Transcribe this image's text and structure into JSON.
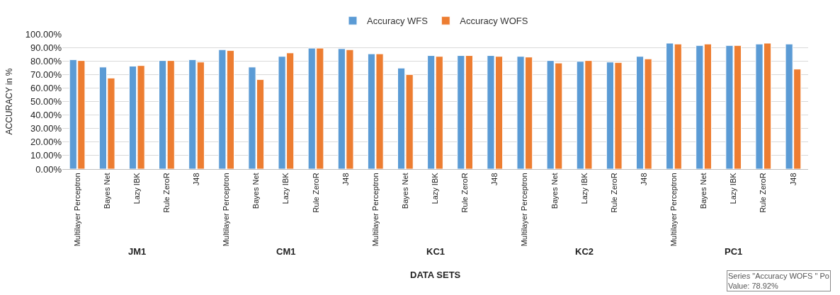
{
  "chart_data": {
    "type": "bar",
    "xlabel": "DATA SETS",
    "ylabel": "ACCURACY in %",
    "categories": [
      "Multilayer Perceptron",
      "Bayes Net",
      "Lazy IBK",
      "Rule ZeroR",
      "J48",
      "Multilayer Perceptron",
      "Bayes Net",
      "Lazy IBK",
      "Rule ZeroR",
      "J48",
      "Multilayer Perceptron",
      "Bayes Net",
      "Lazy IBK",
      "Rule ZeroR",
      "J48",
      "Multilayer Perceptron",
      "Bayes Net",
      "Lazy IBK",
      "Rule ZeroR",
      "J48",
      "Multilayer Perceptron",
      "Bayes Net",
      "Lazy IBK",
      "Rule ZeroR",
      "J48"
    ],
    "series": [
      {
        "name": "Accuracy WFS",
        "color": "#5b9bd5",
        "values": [
          81.0,
          75.5,
          76.2,
          80.3,
          81.0,
          88.4,
          75.5,
          83.4,
          89.5,
          89.1,
          85.3,
          74.8,
          84.0,
          84.0,
          84.0,
          83.4,
          80.3,
          79.7,
          79.2,
          83.4,
          93.2,
          91.5,
          91.5,
          92.6,
          92.6
        ]
      },
      {
        "name": "Accuracy WOFS",
        "color": "#ed7d31",
        "values": [
          80.3,
          67.4,
          76.6,
          80.3,
          79.2,
          87.8,
          66.3,
          86.0,
          89.5,
          88.4,
          85.3,
          70.0,
          83.4,
          84.0,
          83.4,
          82.9,
          78.5,
          80.3,
          78.92,
          81.6,
          92.6,
          92.6,
          91.5,
          93.2,
          74.0
        ]
      }
    ],
    "ylim": [
      0,
      100
    ],
    "yticks": [
      {
        "value": 0,
        "label": "0.00%"
      },
      {
        "value": 10,
        "label": "10.00%"
      },
      {
        "value": 20,
        "label": "20.00%"
      },
      {
        "value": 30,
        "label": "30.00%"
      },
      {
        "value": 40,
        "label": "40.00%"
      },
      {
        "value": 50,
        "label": "50.00%"
      },
      {
        "value": 60,
        "label": "60.00%"
      },
      {
        "value": 70,
        "label": "70.00%"
      },
      {
        "value": 80,
        "label": "80.00%"
      },
      {
        "value": 90,
        "label": "90.00%"
      },
      {
        "value": 100,
        "label": "100.00%"
      }
    ],
    "annotations": [
      "JM1",
      "CM1",
      "KC1",
      "KC2",
      "PC1",
      "Series \"Accuracy WOFS \" Po\nValue: 78.92%"
    ],
    "grid": "y",
    "legend": "top"
  }
}
